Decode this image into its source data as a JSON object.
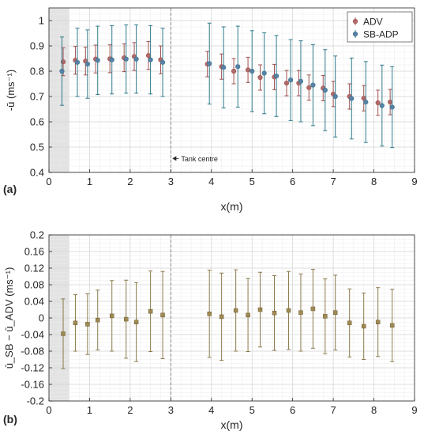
{
  "chart_data": [
    {
      "type": "scatter",
      "panel_label": "(a)",
      "title": "",
      "xlabel": "x(m)",
      "ylabel_html": "-ū (ms⁻¹)",
      "xlim": [
        0,
        9
      ],
      "ylim": [
        0.4,
        1.05
      ],
      "xticks": [
        0,
        1,
        2,
        3,
        4,
        5,
        6,
        7,
        8,
        9
      ],
      "yticks": [
        0.4,
        0.5,
        0.6,
        0.7,
        0.8,
        0.9,
        1.0
      ],
      "ytick_labels": [
        "0.4",
        "0.5",
        "0.6",
        "0.7",
        "0.8",
        "0.9",
        "1"
      ],
      "grid": true,
      "minor_grid": true,
      "shaded_region_x": [
        0,
        0.5
      ],
      "vertical_line_x": 3,
      "annotation": {
        "text": "Tank centre",
        "x": 3,
        "y": 0.455
      },
      "legend": {
        "position": "top-right",
        "entries": [
          "ADV",
          "SB-ADP"
        ]
      },
      "series": [
        {
          "name": "ADV",
          "color": "#a0504f",
          "x": [
            0.35,
            0.65,
            0.9,
            1.15,
            1.5,
            1.85,
            2.1,
            2.45,
            2.75,
            3.9,
            4.25,
            4.55,
            4.9,
            5.2,
            5.55,
            5.85,
            6.15,
            6.4,
            6.75,
            7.0,
            7.4,
            7.75,
            8.1,
            8.4
          ],
          "y": [
            0.837,
            0.843,
            0.84,
            0.848,
            0.849,
            0.853,
            0.858,
            0.862,
            0.845,
            0.828,
            0.818,
            0.8,
            0.805,
            0.775,
            0.777,
            0.753,
            0.753,
            0.735,
            0.733,
            0.71,
            0.7,
            0.693,
            0.675,
            0.678
          ],
          "err": [
            0.055,
            0.055,
            0.055,
            0.055,
            0.055,
            0.055,
            0.055,
            0.055,
            0.055,
            0.05,
            0.05,
            0.05,
            0.05,
            0.05,
            0.05,
            0.05,
            0.05,
            0.05,
            0.05,
            0.05,
            0.05,
            0.05,
            0.05,
            0.05
          ]
        },
        {
          "name": "SB-ADP",
          "color": "#2f7a8c",
          "x": [
            0.32,
            0.7,
            0.95,
            1.2,
            1.55,
            1.9,
            2.15,
            2.5,
            2.8,
            3.95,
            4.3,
            4.65,
            5.0,
            5.3,
            5.6,
            5.95,
            6.2,
            6.5,
            6.8,
            7.05,
            7.45,
            7.8,
            8.2,
            8.45
          ],
          "y": [
            0.8,
            0.835,
            0.828,
            0.843,
            0.845,
            0.848,
            0.848,
            0.845,
            0.835,
            0.83,
            0.815,
            0.818,
            0.8,
            0.792,
            0.781,
            0.765,
            0.76,
            0.745,
            0.725,
            0.7,
            0.692,
            0.678,
            0.664,
            0.658
          ],
          "err": [
            0.135,
            0.135,
            0.135,
            0.135,
            0.135,
            0.135,
            0.135,
            0.135,
            0.135,
            0.16,
            0.16,
            0.16,
            0.16,
            0.16,
            0.16,
            0.16,
            0.16,
            0.16,
            0.16,
            0.16,
            0.16,
            0.16,
            0.16,
            0.16
          ]
        }
      ]
    },
    {
      "type": "scatter",
      "panel_label": "(b)",
      "title": "",
      "xlabel": "x(m)",
      "ylabel_html": "ū_SB − ū_ADV (ms⁻¹)",
      "xlim": [
        0,
        9
      ],
      "ylim": [
        -0.2,
        0.2
      ],
      "xticks": [
        0,
        1,
        2,
        3,
        4,
        5,
        6,
        7,
        8,
        9
      ],
      "yticks": [
        -0.2,
        -0.16,
        -0.12,
        -0.08,
        -0.04,
        0,
        0.04,
        0.08,
        0.12,
        0.16,
        0.2
      ],
      "ytick_labels": [
        "-0.2",
        "-0.16",
        "-0.12",
        "-0.08",
        "-0.04",
        "0",
        "0.04",
        "0.08",
        "0.12",
        "0.16",
        "0.2"
      ],
      "grid": true,
      "minor_grid": true,
      "shaded_region_x": [
        0,
        0.5
      ],
      "vertical_line_x": 3,
      "series": [
        {
          "color": "#8b7a4c",
          "x": [
            0.35,
            0.65,
            0.95,
            1.2,
            1.55,
            1.9,
            2.15,
            2.5,
            2.8,
            3.95,
            4.25,
            4.6,
            4.9,
            5.2,
            5.55,
            5.9,
            6.2,
            6.5,
            6.8,
            7.05,
            7.4,
            7.75,
            8.1,
            8.45
          ],
          "y": [
            -0.038,
            -0.012,
            -0.015,
            -0.005,
            0.005,
            -0.003,
            -0.01,
            0.016,
            0.007,
            0.01,
            0.003,
            0.018,
            0.007,
            0.02,
            0.012,
            0.018,
            0.013,
            0.022,
            0.004,
            0.013,
            -0.012,
            -0.02,
            -0.01,
            -0.018
          ],
          "err": [
            0.084,
            0.068,
            0.073,
            0.072,
            0.085,
            0.094,
            0.095,
            0.097,
            0.105,
            0.105,
            0.105,
            0.098,
            0.088,
            0.09,
            0.09,
            0.094,
            0.093,
            0.095,
            0.09,
            0.09,
            0.082,
            0.08,
            0.083,
            0.087
          ]
        }
      ]
    }
  ]
}
